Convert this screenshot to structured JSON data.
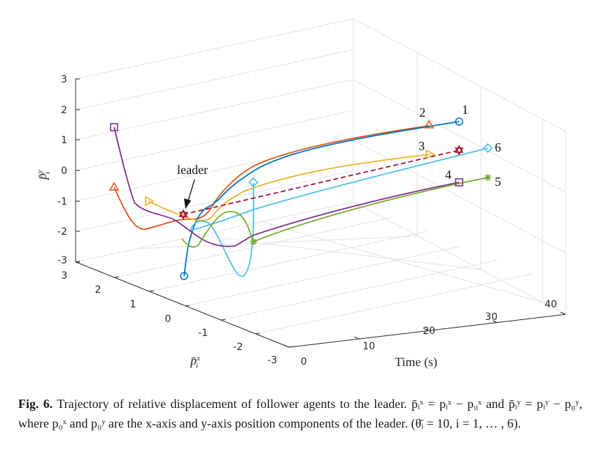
{
  "figure": {
    "axes": {
      "y_title": "p̄",
      "y_title_sup": "y",
      "y_title_sub": "i",
      "x_title": "p̄",
      "x_title_sup": "x",
      "x_title_sub": "i",
      "time_title": "Time (s)",
      "y_ticks": [
        "3",
        "2",
        "1",
        "0",
        "-1",
        "-2",
        "-3"
      ],
      "x_ticks": [
        "3",
        "2",
        "1",
        "0",
        "-1",
        "-2",
        "-3"
      ],
      "time_ticks": [
        "0",
        "10",
        "20",
        "30",
        "40"
      ]
    },
    "annotations": {
      "leader": "leader",
      "agent_labels": [
        "1",
        "2",
        "3",
        "4",
        "5",
        "6"
      ]
    },
    "colors": {
      "agent1": "#0072BD",
      "agent2": "#D95319",
      "agent3": "#EDB120",
      "agent4": "#7E2F8E",
      "agent5": "#77AC30",
      "agent6": "#4DBEEE",
      "leader": "#A2142F"
    }
  },
  "caption": {
    "fig_label": "Fig. 6.",
    "text": "Trajectory of relative displacement of follower agents to the leader. p̄ᵢˣ = pᵢˣ − p₀ˣ and p̄ᵢʸ = pᵢʸ − p₀ʸ, where p₀ˣ and p₀ʸ are the x-axis and y-axis position components of the leader. (θ̄ᵢ = 10,  i = 1, … , 6)."
  }
}
